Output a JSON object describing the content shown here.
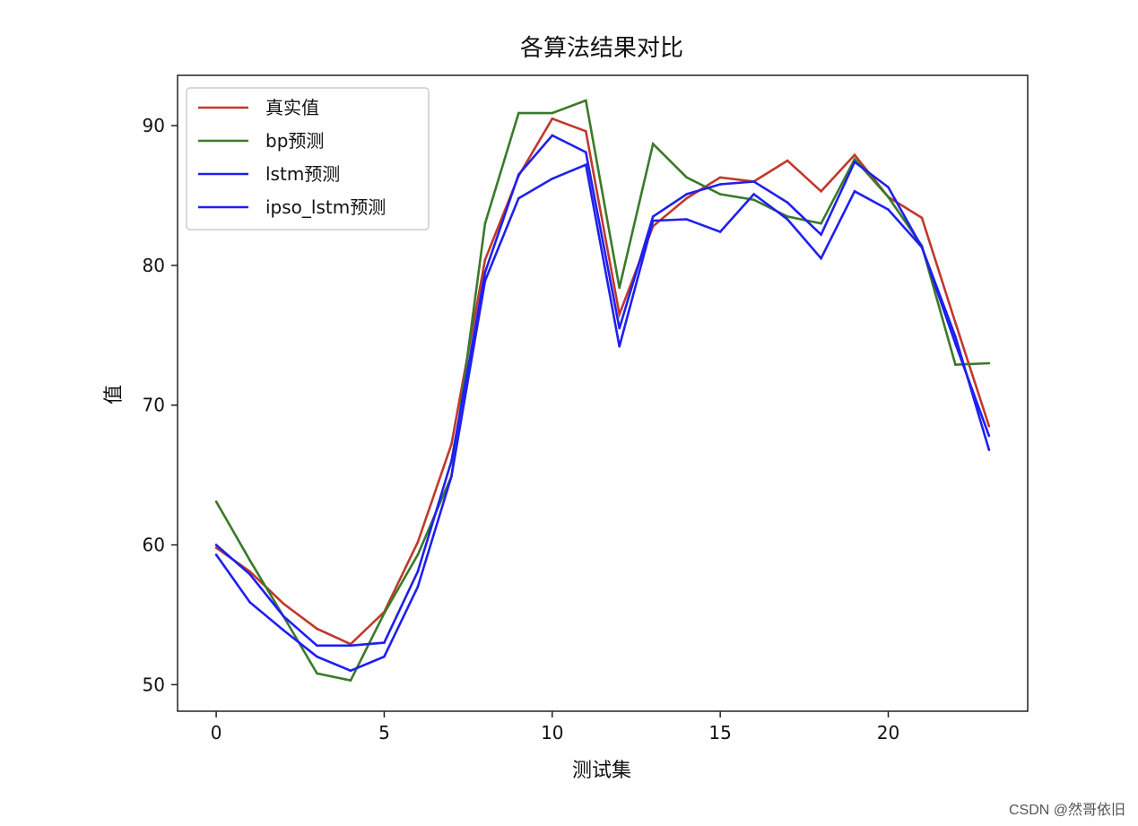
{
  "chart_data": {
    "type": "line",
    "title": "各算法结果对比",
    "xlabel": "测试集",
    "ylabel": "值",
    "xlim": [
      -1.15,
      24.15
    ],
    "ylim": [
      48.1,
      93.6
    ],
    "xticks": [
      0,
      5,
      10,
      15,
      20
    ],
    "yticks": [
      50,
      60,
      70,
      80,
      90
    ],
    "grid": false,
    "legend_position": "top-left",
    "x": [
      0,
      1,
      2,
      3,
      4,
      5,
      6,
      7,
      8,
      9,
      10,
      11,
      12,
      13,
      14,
      15,
      16,
      17,
      18,
      19,
      20,
      21,
      22,
      23
    ],
    "series": [
      {
        "name": "真实值",
        "color": "#c0392b",
        "values": [
          59.8,
          58.1,
          55.8,
          54.0,
          52.9,
          55.2,
          60.2,
          67.2,
          80.4,
          86.4,
          90.5,
          89.6,
          76.5,
          82.8,
          84.8,
          86.3,
          86.0,
          87.5,
          85.3,
          87.9,
          84.9,
          83.4,
          75.9,
          68.5
        ]
      },
      {
        "name": "bp预测",
        "color": "#3a7a2a",
        "values": [
          63.1,
          58.9,
          54.9,
          50.8,
          50.3,
          55.1,
          59.3,
          64.9,
          83.0,
          90.9,
          90.9,
          91.8,
          78.4,
          88.7,
          86.3,
          85.1,
          84.7,
          83.5,
          83.0,
          87.6,
          84.9,
          81.4,
          72.9,
          73.0
        ]
      },
      {
        "name": "lstm预测",
        "color": "#1f1ff0",
        "values": [
          59.3,
          55.9,
          53.9,
          52.0,
          51.0,
          52.0,
          57.0,
          64.9,
          78.9,
          84.8,
          86.2,
          87.2,
          74.2,
          83.2,
          83.3,
          82.4,
          85.1,
          83.3,
          80.5,
          85.3,
          84.0,
          81.3,
          74.9,
          66.8
        ]
      },
      {
        "name": "ipso_lstm预测",
        "color": "#1f1ff0",
        "values": [
          60.0,
          57.9,
          54.9,
          52.8,
          52.8,
          53.0,
          58.1,
          66.0,
          79.5,
          86.5,
          89.3,
          88.1,
          75.5,
          83.5,
          85.1,
          85.8,
          86.0,
          84.5,
          82.2,
          87.4,
          85.6,
          81.3,
          74.4,
          67.8
        ]
      }
    ]
  },
  "watermark": "CSDN @然哥依旧"
}
